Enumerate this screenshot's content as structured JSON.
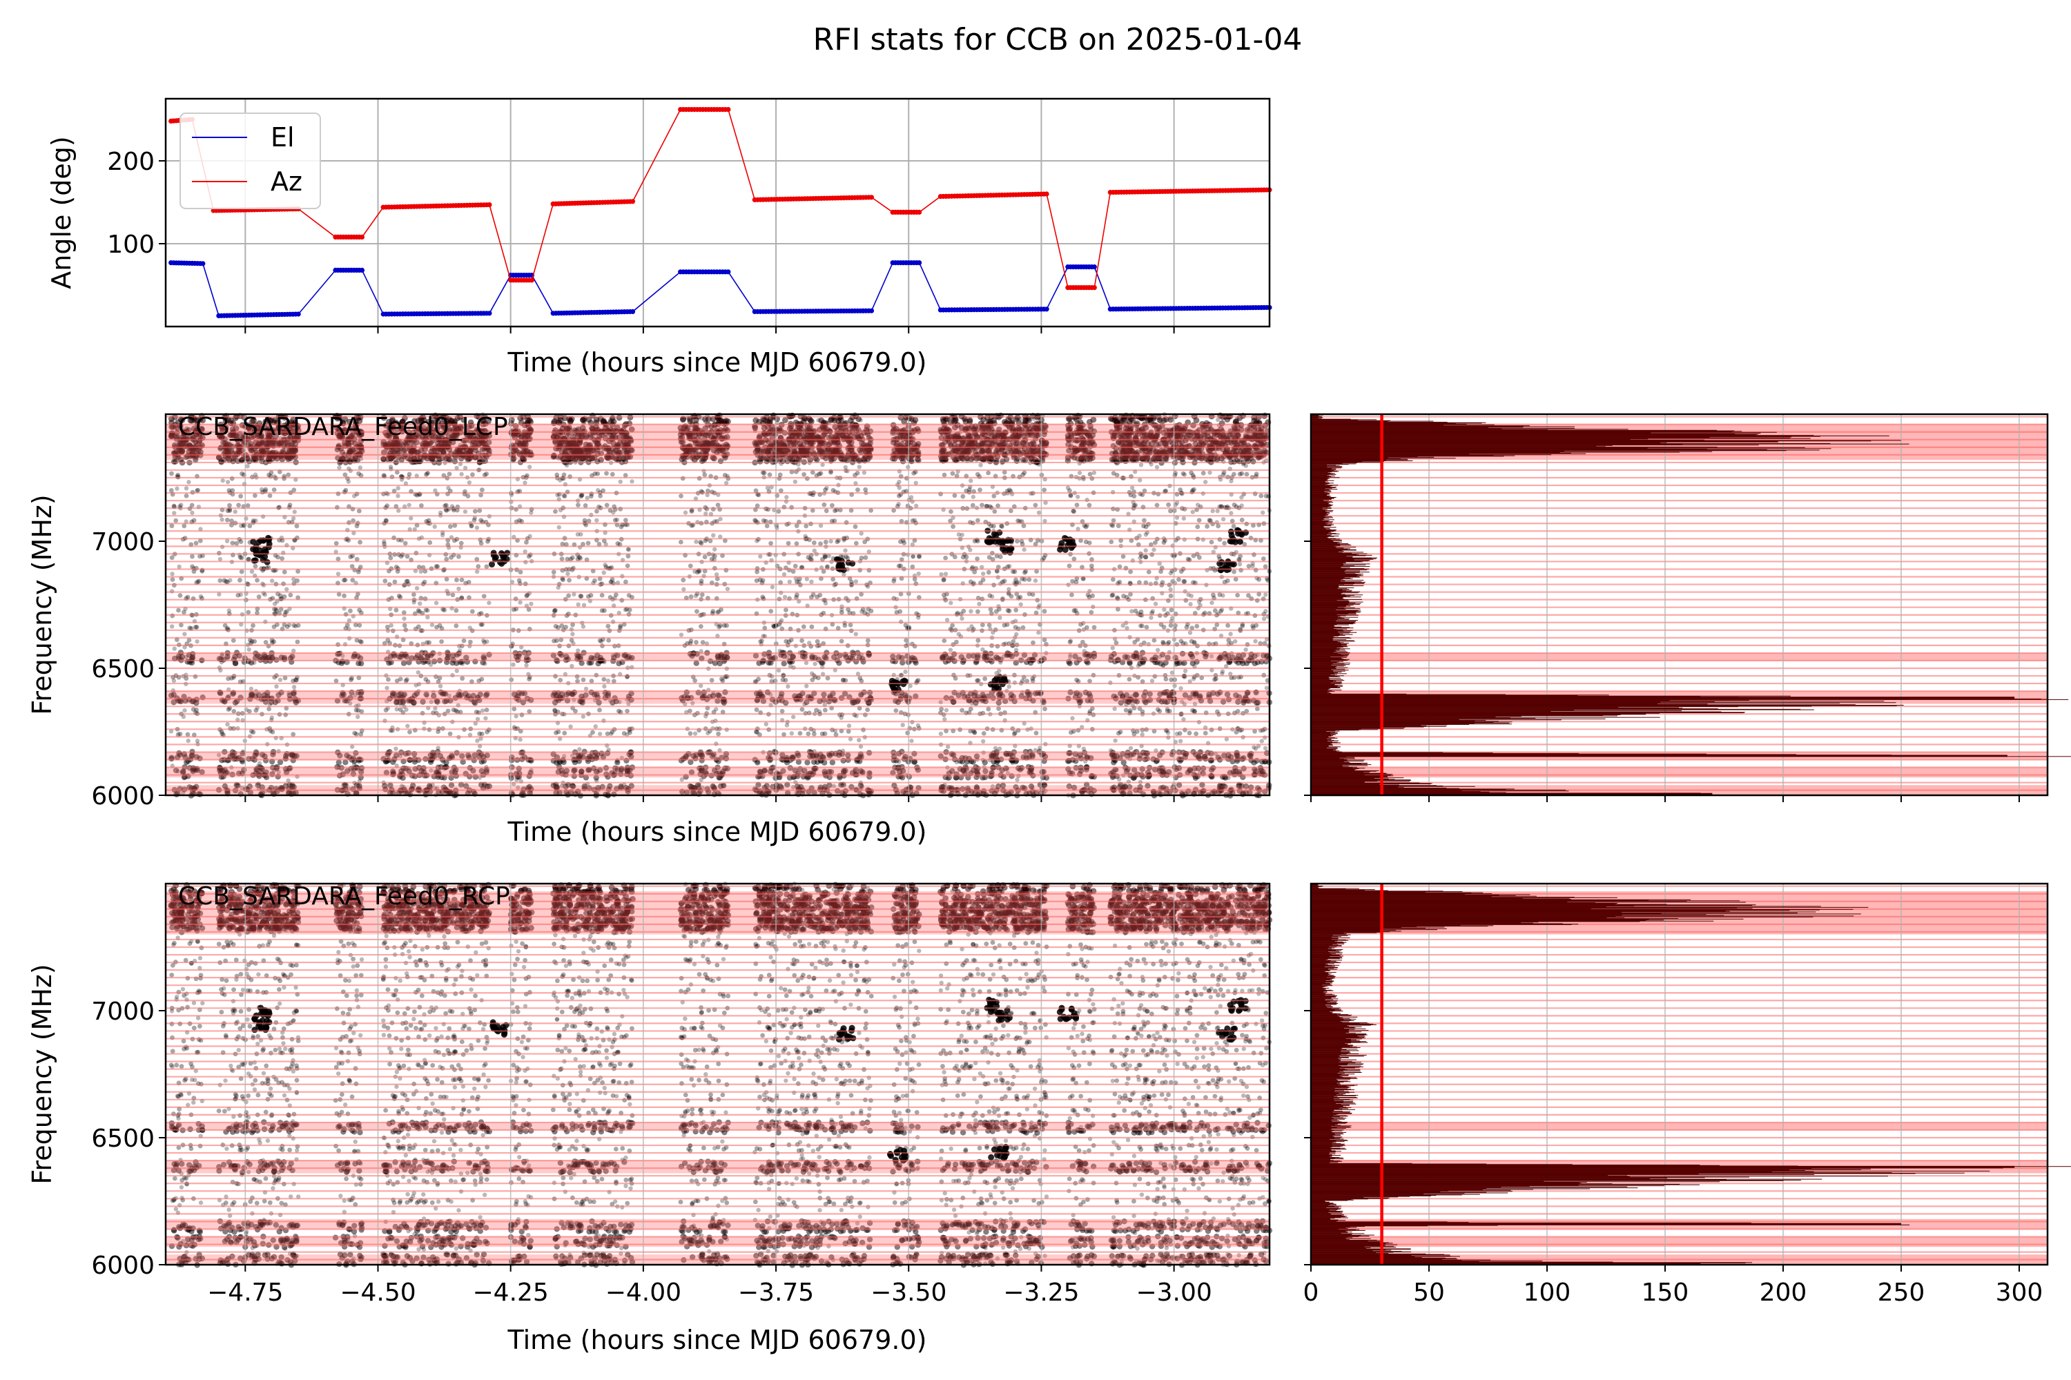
{
  "figure": {
    "title": "RFI stats for CCB on 2025-01-04"
  },
  "chart_data": [
    {
      "type": "line",
      "panel": "pointing",
      "xlabel": "Time (hours since MJD 60679.0)",
      "ylabel": "Angle (deg)",
      "xlim": [
        -4.9,
        -2.82
      ],
      "ylim": [
        0,
        275
      ],
      "yticks": [
        "100",
        "200"
      ],
      "grid": true,
      "legend_position": "upper-left",
      "series": [
        {
          "name": "El",
          "color": "#0000cc",
          "segments": [
            {
              "x": [
                -4.89,
                -4.83
              ],
              "y": [
                77,
                76
              ]
            },
            {
              "x": [
                -4.8,
                -4.65
              ],
              "y": [
                13,
                15
              ]
            },
            {
              "x": [
                -4.58,
                -4.53
              ],
              "y": [
                68,
                68
              ]
            },
            {
              "x": [
                -4.49,
                -4.29
              ],
              "y": [
                15,
                16
              ]
            },
            {
              "x": [
                -4.25,
                -4.21
              ],
              "y": [
                62,
                62
              ]
            },
            {
              "x": [
                -4.17,
                -4.02
              ],
              "y": [
                16,
                18
              ]
            },
            {
              "x": [
                -3.93,
                -3.84
              ],
              "y": [
                66,
                66
              ]
            },
            {
              "x": [
                -3.79,
                -3.57
              ],
              "y": [
                18,
                19
              ]
            },
            {
              "x": [
                -3.53,
                -3.48
              ],
              "y": [
                77,
                77
              ]
            },
            {
              "x": [
                -3.44,
                -3.24
              ],
              "y": [
                20,
                21
              ]
            },
            {
              "x": [
                -3.2,
                -3.15
              ],
              "y": [
                72,
                72
              ]
            },
            {
              "x": [
                -3.12,
                -2.82
              ],
              "y": [
                21,
                23
              ]
            }
          ]
        },
        {
          "name": "Az",
          "color": "#ee0000",
          "segments": [
            {
              "x": [
                -4.89,
                -4.85
              ],
              "y": [
                248,
                250
              ]
            },
            {
              "x": [
                -4.81,
                -4.65
              ],
              "y": [
                140,
                142
              ]
            },
            {
              "x": [
                -4.58,
                -4.53
              ],
              "y": [
                108,
                108
              ]
            },
            {
              "x": [
                -4.49,
                -4.29
              ],
              "y": [
                144,
                147
              ]
            },
            {
              "x": [
                -4.25,
                -4.21
              ],
              "y": [
                56,
                56
              ]
            },
            {
              "x": [
                -4.17,
                -4.02
              ],
              "y": [
                148,
                151
              ]
            },
            {
              "x": [
                -3.93,
                -3.84
              ],
              "y": [
                262,
                262
              ]
            },
            {
              "x": [
                -3.79,
                -3.57
              ],
              "y": [
                153,
                156
              ]
            },
            {
              "x": [
                -3.53,
                -3.48
              ],
              "y": [
                138,
                138
              ]
            },
            {
              "x": [
                -3.44,
                -3.24
              ],
              "y": [
                157,
                160
              ]
            },
            {
              "x": [
                -3.2,
                -3.15
              ],
              "y": [
                47,
                47
              ]
            },
            {
              "x": [
                -3.12,
                -2.82
              ],
              "y": [
                162,
                165
              ]
            }
          ]
        }
      ]
    },
    {
      "type": "scatter",
      "panel": "waterfall-lcp",
      "title": "CCB_SARDARA_Feed0_LCP",
      "xlabel": "Time (hours since MJD 60679.0)",
      "ylabel": "Frequency (MHz)",
      "xlim": [
        -4.9,
        -2.82
      ],
      "ylim": [
        6000,
        7500
      ],
      "yticks": [
        "6000",
        "6500",
        "7000"
      ],
      "point_color": "#000000",
      "observing_blocks": [
        [
          -4.89,
          -4.83
        ],
        [
          -4.8,
          -4.65
        ],
        [
          -4.58,
          -4.53
        ],
        [
          -4.49,
          -4.29
        ],
        [
          -4.25,
          -4.21
        ],
        [
          -4.17,
          -4.02
        ],
        [
          -3.93,
          -3.84
        ],
        [
          -3.79,
          -3.57
        ],
        [
          -3.53,
          -3.48
        ],
        [
          -3.44,
          -3.24
        ],
        [
          -3.2,
          -3.15
        ],
        [
          -3.12,
          -2.82
        ]
      ],
      "flag_color": "#ff6060",
      "flagged_bands": [
        {
          "from": 6000,
          "to": 6040
        },
        {
          "from": 6070,
          "to": 6110
        },
        {
          "from": 6140,
          "to": 6170
        },
        {
          "from": 6360,
          "to": 6410
        },
        {
          "from": 6530,
          "to": 6560
        },
        {
          "from": 7320,
          "to": 7460
        }
      ],
      "dense_rfi_rows_mhz": [
        6020,
        6090,
        6150,
        6385,
        6540,
        7330,
        7370,
        7420
      ],
      "sparse_rfi_rows_mhz": [
        6250,
        6330,
        6460,
        6600,
        6660,
        6720,
        6780,
        6840,
        6890,
        6940,
        7000,
        7070,
        7130,
        7190,
        7260
      ],
      "clusters": [
        {
          "x": -4.72,
          "y": 6990
        },
        {
          "x": -4.72,
          "y": 6940
        },
        {
          "x": -4.27,
          "y": 6930
        },
        {
          "x": -3.62,
          "y": 6910
        },
        {
          "x": -3.34,
          "y": 7020
        },
        {
          "x": -3.32,
          "y": 6980
        },
        {
          "x": -3.2,
          "y": 6990
        },
        {
          "x": -2.9,
          "y": 6910
        },
        {
          "x": -2.88,
          "y": 7020
        },
        {
          "x": -3.52,
          "y": 6430
        },
        {
          "x": -3.33,
          "y": 6440
        }
      ]
    },
    {
      "type": "bar",
      "orientation": "horizontal",
      "panel": "histogram-lcp",
      "xlim": [
        0,
        312
      ],
      "ylim": [
        6000,
        7500
      ],
      "bar_color": "#550000",
      "threshold_x": 30,
      "threshold_color": "#ff0000",
      "profile": [
        {
          "f": 6005,
          "v": 170
        },
        {
          "f": 6015,
          "v": 120
        },
        {
          "f": 6030,
          "v": 70
        },
        {
          "f": 6050,
          "v": 40
        },
        {
          "f": 6080,
          "v": 35
        },
        {
          "f": 6100,
          "v": 25
        },
        {
          "f": 6150,
          "v": 20
        },
        {
          "f": 6155,
          "v": 295
        },
        {
          "f": 6170,
          "v": 12
        },
        {
          "f": 6250,
          "v": 10
        },
        {
          "f": 6384,
          "v": 298
        },
        {
          "f": 6400,
          "v": 12
        },
        {
          "f": 6540,
          "v": 15
        },
        {
          "f": 6900,
          "v": 22
        },
        {
          "f": 6940,
          "v": 25
        },
        {
          "f": 7000,
          "v": 12
        },
        {
          "f": 7100,
          "v": 8
        },
        {
          "f": 7300,
          "v": 12
        },
        {
          "f": 7330,
          "v": 60
        },
        {
          "f": 7360,
          "v": 200
        },
        {
          "f": 7390,
          "v": 230
        },
        {
          "f": 7420,
          "v": 210
        },
        {
          "f": 7450,
          "v": 120
        },
        {
          "f": 7480,
          "v": 20
        }
      ]
    },
    {
      "type": "scatter",
      "panel": "waterfall-rcp",
      "title": "CCB_SARDARA_Feed0_RCP",
      "xlabel": "Time (hours since MJD 60679.0)",
      "ylabel": "Frequency (MHz)",
      "xlim": [
        -4.9,
        -2.82
      ],
      "ylim": [
        6000,
        7500
      ],
      "xticks": [
        "−4.75",
        "−4.50",
        "−4.25",
        "−4.00",
        "−3.75",
        "−3.50",
        "−3.25",
        "−3.00"
      ],
      "yticks": [
        "6000",
        "6500",
        "7000"
      ],
      "point_color": "#000000",
      "flag_color": "#ff6060",
      "flagged_bands": [
        {
          "from": 6000,
          "to": 6040
        },
        {
          "from": 6070,
          "to": 6110
        },
        {
          "from": 6140,
          "to": 6180
        },
        {
          "from": 6360,
          "to": 6410
        },
        {
          "from": 6530,
          "to": 6560
        },
        {
          "from": 7300,
          "to": 7470
        }
      ]
    },
    {
      "type": "bar",
      "orientation": "horizontal",
      "panel": "histogram-rcp",
      "xlim": [
        0,
        312
      ],
      "ylim": [
        6000,
        7500
      ],
      "xticks": [
        "0",
        "50",
        "100",
        "150",
        "200",
        "250",
        "300"
      ],
      "bar_color": "#550000",
      "threshold_x": 30,
      "threshold_color": "#ff0000",
      "profile": [
        {
          "f": 6005,
          "v": 165
        },
        {
          "f": 6015,
          "v": 110
        },
        {
          "f": 6030,
          "v": 65
        },
        {
          "f": 6050,
          "v": 40
        },
        {
          "f": 6080,
          "v": 35
        },
        {
          "f": 6100,
          "v": 25
        },
        {
          "f": 6150,
          "v": 20
        },
        {
          "f": 6160,
          "v": 250
        },
        {
          "f": 6170,
          "v": 15
        },
        {
          "f": 6250,
          "v": 10
        },
        {
          "f": 6385,
          "v": 298
        },
        {
          "f": 6400,
          "v": 12
        },
        {
          "f": 6540,
          "v": 15
        },
        {
          "f": 6900,
          "v": 22
        },
        {
          "f": 6940,
          "v": 25
        },
        {
          "f": 7000,
          "v": 12
        },
        {
          "f": 7100,
          "v": 8
        },
        {
          "f": 7300,
          "v": 15
        },
        {
          "f": 7330,
          "v": 70
        },
        {
          "f": 7360,
          "v": 190
        },
        {
          "f": 7390,
          "v": 215
        },
        {
          "f": 7420,
          "v": 200
        },
        {
          "f": 7450,
          "v": 120
        },
        {
          "f": 7480,
          "v": 20
        }
      ]
    }
  ]
}
